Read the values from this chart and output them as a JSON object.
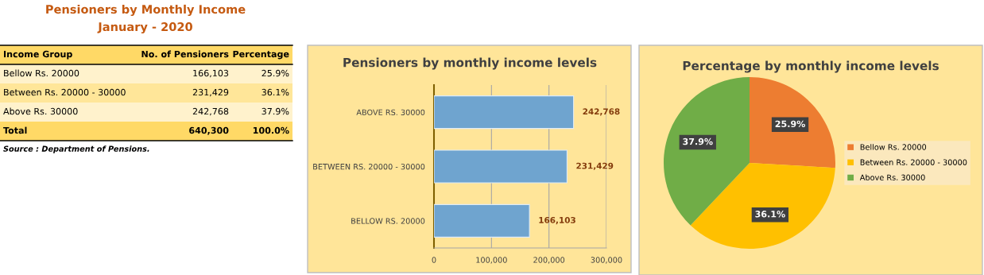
{
  "chart_data": [
    {
      "type": "other",
      "title": "Pensioners by Monthly Income",
      "subtitle": "January - 2020",
      "annotations": [
        "Income Group",
        "No. of Pensioners",
        "Percentage",
        "Bellow Rs. 20000",
        "166,103",
        "25.9%",
        "Between Rs. 20000 - 30000",
        "231,429",
        "36.1%",
        "Above Rs. 30000",
        "242,768",
        "37.9%",
        "Total",
        "640,300",
        "100.0%",
        "Source : Department of Pensions."
      ]
    },
    {
      "type": "bar",
      "orientation": "horizontal",
      "title": "Pensioners by monthly income levels",
      "categories": [
        "ABOVE RS. 30000",
        "BETWEEN RS. 20000 - 30000",
        "BELLOW RS. 20000"
      ],
      "values": [
        242768,
        231429,
        166103
      ],
      "value_labels": [
        "242,768",
        "231,429",
        "166,103"
      ],
      "color": "#6fa4cf",
      "xlim": [
        0,
        300000
      ],
      "xticks": [
        0,
        {
          "value": 100000,
          "label": "100,000"
        },
        {
          "value": 200000,
          "label": "200,000"
        },
        {
          "value": 300000,
          "label": "300,000"
        }
      ],
      "grid": "x"
    },
    {
      "type": "pie",
      "title": "Percentage by monthly income levels",
      "categories": [
        "Bellow Rs. 20000",
        "Between Rs. 20000 - 30000",
        "Above Rs. 30000"
      ],
      "values": [
        25.9,
        36.1,
        37.9
      ],
      "value_labels": [
        "25.9%",
        "36.1%",
        "37.9%"
      ],
      "colors": [
        "#ed7d31",
        "#ffc000",
        "#70ad47"
      ],
      "legend": "right"
    }
  ]
}
